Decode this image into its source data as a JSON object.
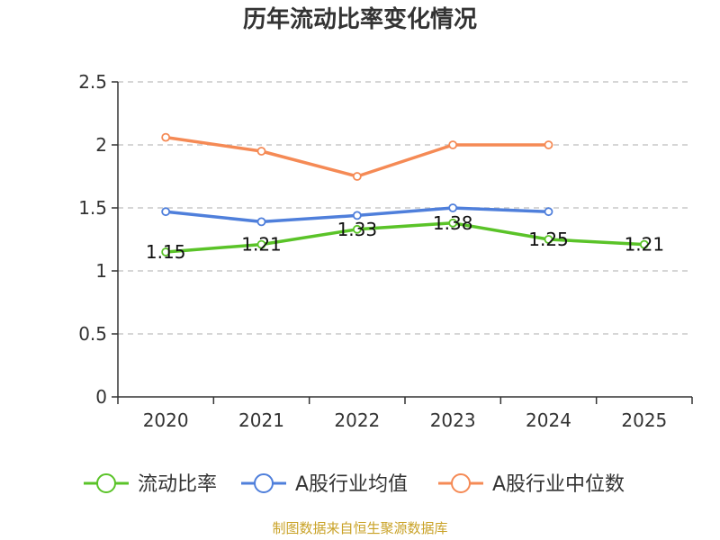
{
  "chart_data": {
    "type": "line",
    "title": "历年流动比率变化情况",
    "xlabel": "",
    "ylabel": "",
    "categories": [
      "2020",
      "2021",
      "2022",
      "2023",
      "2024",
      "2025"
    ],
    "ylim": [
      0,
      2.5
    ],
    "yticks": [
      0,
      0.5,
      1,
      1.5,
      2,
      2.5
    ],
    "ytick_labels": [
      "0",
      "0.5",
      "1",
      "1.5",
      "2",
      "2.5"
    ],
    "grid": true,
    "legend_position": "bottom",
    "series": [
      {
        "name": "流动比率",
        "color": "#5ac328",
        "values": [
          1.15,
          1.21,
          1.33,
          1.38,
          1.25,
          1.21
        ],
        "data_labels": [
          "1.15",
          "1.21",
          "1.33",
          "1.38",
          "1.25",
          "1.21"
        ]
      },
      {
        "name": "A股行业均值",
        "color": "#4f7fdb",
        "values": [
          1.47,
          1.39,
          1.44,
          1.5,
          1.47,
          null
        ]
      },
      {
        "name": "A股行业中位数",
        "color": "#f58a55",
        "values": [
          2.06,
          1.95,
          1.75,
          2.0,
          2.0,
          null
        ]
      }
    ]
  },
  "footer": {
    "source": "制图数据来自恒生聚源数据库"
  }
}
